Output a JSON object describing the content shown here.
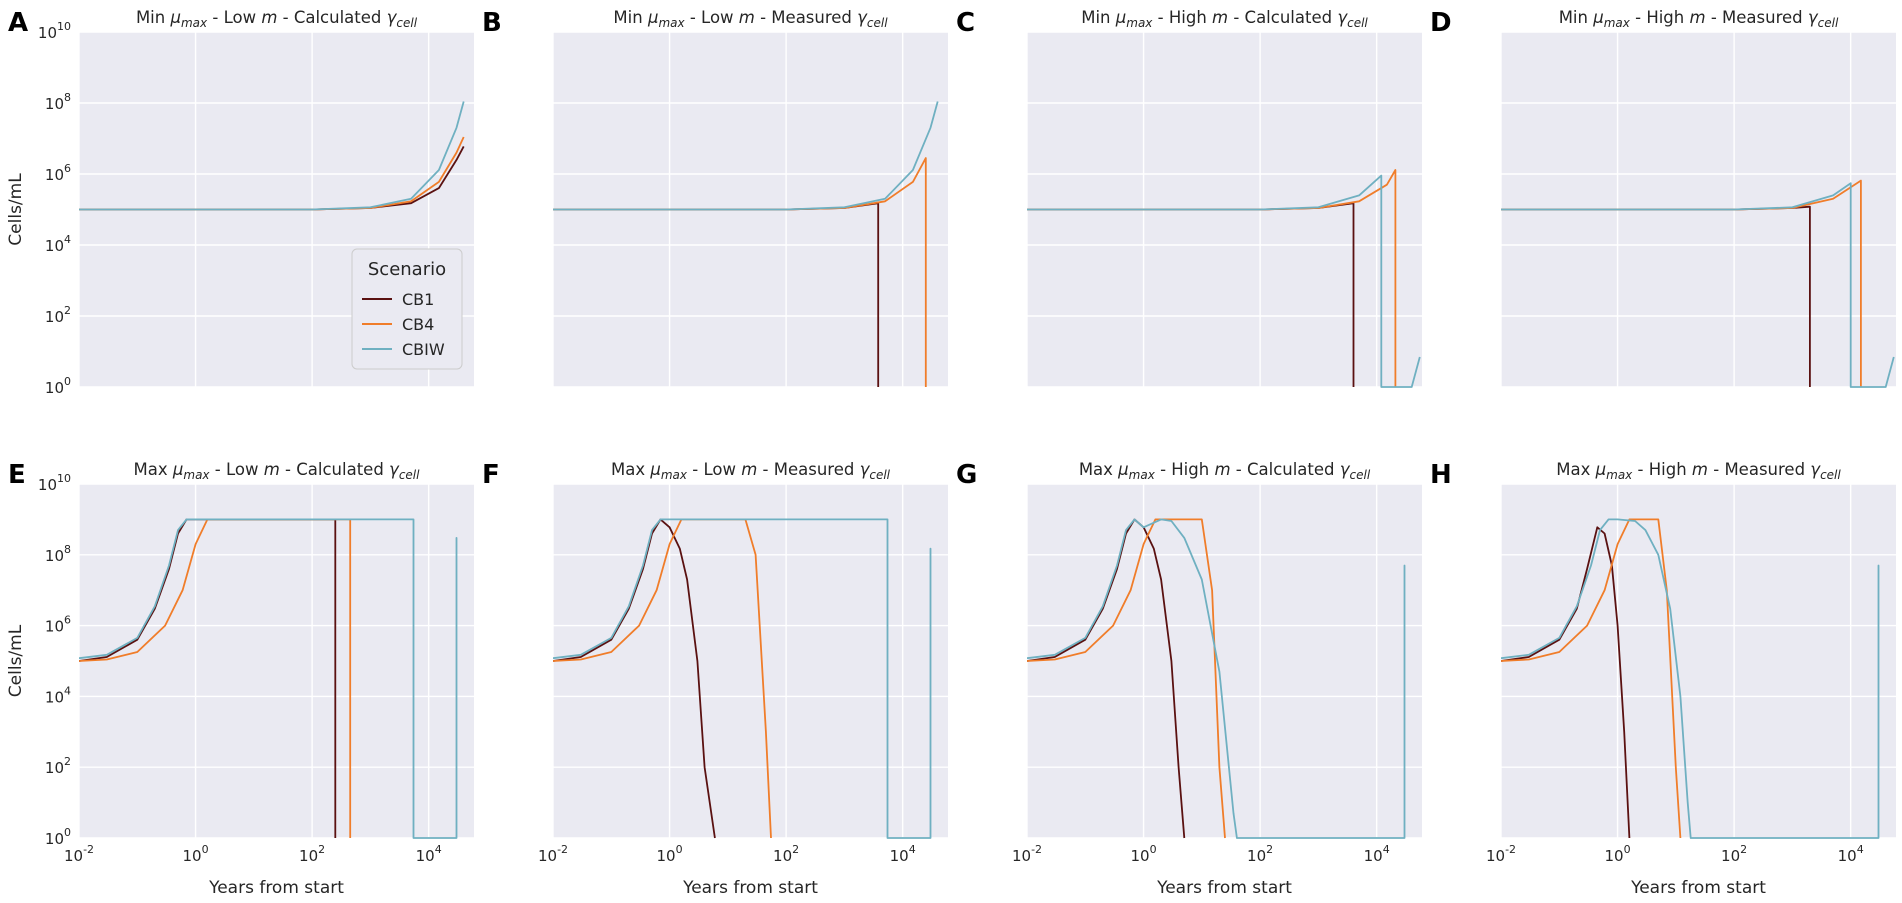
{
  "colors": {
    "CB1": "#5a1111",
    "CB4": "#f07d2a",
    "CBIW": "#6fb0c1",
    "axes_bg": "#eaeaf2",
    "grid": "#ffffff"
  },
  "chart_data": [
    {
      "panel": "A",
      "type": "line",
      "title": {
        "prefix": "Min ",
        "mu_sub": "max",
        "middle": " - Low ",
        "m": "m",
        "tail": " - Calculated ",
        "gamma_sub": "cell"
      },
      "xlabel": "",
      "ylabel": "Cells/mL",
      "xscale": "log",
      "yscale": "log",
      "xlim": [
        0.01,
        60000
      ],
      "ylim": [
        1,
        10000000000.0
      ],
      "legend": {
        "title": "Scenario",
        "position": "lower-right",
        "entries": [
          "CB1",
          "CB4",
          "CBIW"
        ]
      },
      "series": [
        {
          "name": "CB1",
          "x": [
            0.01,
            100,
            1000,
            5000,
            15000,
            30000,
            40000
          ],
          "y": [
            100000,
            100000,
            110000,
            150000,
            400000,
            2500000,
            6000000
          ]
        },
        {
          "name": "CB4",
          "x": [
            0.01,
            100,
            1000,
            5000,
            15000,
            30000,
            40000
          ],
          "y": [
            100000,
            100000,
            110000,
            170000,
            600000,
            4000000,
            11000000
          ]
        },
        {
          "name": "CBIW",
          "x": [
            0.01,
            100,
            1000,
            5000,
            15000,
            30000,
            40000
          ],
          "y": [
            100000,
            100000,
            115000,
            200000,
            1300000,
            20000000,
            110000000
          ]
        }
      ]
    },
    {
      "panel": "B",
      "type": "line",
      "title": {
        "prefix": "Min ",
        "mu_sub": "max",
        "middle": " - Low ",
        "m": "m",
        "tail": " - Measured ",
        "gamma_sub": "cell"
      },
      "xlabel": "",
      "ylabel": "",
      "xscale": "log",
      "yscale": "log",
      "xlim": [
        0.01,
        60000
      ],
      "ylim": [
        1,
        10000000000.0
      ],
      "series": [
        {
          "name": "CB1",
          "x": [
            0.01,
            100,
            1000,
            3800,
            3800.1
          ],
          "y": [
            100000,
            100000,
            110000,
            150000,
            1
          ]
        },
        {
          "name": "CB4",
          "x": [
            0.01,
            100,
            1000,
            5000,
            15000,
            25000,
            25000.1
          ],
          "y": [
            100000,
            100000,
            110000,
            170000,
            600000,
            2800000,
            1
          ]
        },
        {
          "name": "CBIW",
          "x": [
            0.01,
            100,
            1000,
            5000,
            15000,
            30000,
            40000
          ],
          "y": [
            100000,
            100000,
            115000,
            200000,
            1300000,
            20000000,
            110000000
          ]
        }
      ]
    },
    {
      "panel": "C",
      "type": "line",
      "title": {
        "prefix": "Min ",
        "mu_sub": "max",
        "middle": " - High ",
        "m": "m",
        "tail": " - Calculated ",
        "gamma_sub": "cell"
      },
      "xlabel": "",
      "ylabel": "",
      "xscale": "log",
      "yscale": "log",
      "xlim": [
        0.01,
        60000
      ],
      "ylim": [
        1,
        10000000000.0
      ],
      "series": [
        {
          "name": "CB1",
          "x": [
            0.01,
            100,
            1000,
            4000,
            4000.1
          ],
          "y": [
            100000,
            100000,
            110000,
            150000,
            1
          ]
        },
        {
          "name": "CB4",
          "x": [
            0.01,
            100,
            1000,
            5000,
            15000,
            21000,
            21000.1
          ],
          "y": [
            100000,
            100000,
            110000,
            170000,
            500000,
            1300000,
            1
          ]
        },
        {
          "name": "CBIW",
          "x": [
            0.01,
            100,
            1000,
            5000,
            12000,
            12000.1,
            40000,
            55000
          ],
          "y": [
            100000,
            100000,
            115000,
            250000,
            900000,
            1,
            1,
            7
          ]
        }
      ]
    },
    {
      "panel": "D",
      "type": "line",
      "title": {
        "prefix": "Min ",
        "mu_sub": "max",
        "middle": " - High ",
        "m": "m",
        "tail": " - Measured ",
        "gamma_sub": "cell"
      },
      "xlabel": "",
      "ylabel": "",
      "xscale": "log",
      "yscale": "log",
      "xlim": [
        0.01,
        60000
      ],
      "ylim": [
        1,
        10000000000.0
      ],
      "series": [
        {
          "name": "CB1",
          "x": [
            0.01,
            100,
            1000,
            2000,
            2000.1
          ],
          "y": [
            100000,
            100000,
            110000,
            120000,
            1
          ]
        },
        {
          "name": "CB4",
          "x": [
            0.01,
            100,
            1000,
            5000,
            15000,
            15000.1
          ],
          "y": [
            100000,
            100000,
            110000,
            200000,
            650000,
            1
          ]
        },
        {
          "name": "CBIW",
          "x": [
            0.01,
            100,
            1000,
            5000,
            10000,
            10000.1,
            40000,
            55000
          ],
          "y": [
            100000,
            100000,
            115000,
            250000,
            550000,
            1,
            1,
            7
          ]
        }
      ]
    },
    {
      "panel": "E",
      "type": "line",
      "title": {
        "prefix": "Max ",
        "mu_sub": "max",
        "middle": " - Low ",
        "m": "m",
        "tail": " - Calculated ",
        "gamma_sub": "cell"
      },
      "xlabel": "Years from start",
      "ylabel": "Cells/mL",
      "xscale": "log",
      "yscale": "log",
      "xlim": [
        0.01,
        60000
      ],
      "ylim": [
        1,
        10000000000.0
      ],
      "x_ticks": [
        "10-2",
        "10^0",
        "10^2",
        "10^4"
      ],
      "series": [
        {
          "name": "CB1",
          "x": [
            0.01,
            0.03,
            0.1,
            0.2,
            0.35,
            0.5,
            0.7,
            250,
            250.1
          ],
          "y": [
            100000,
            130000,
            400000,
            3000000,
            40000000,
            400000000,
            1000000000,
            1000000000,
            1
          ]
        },
        {
          "name": "CB4",
          "x": [
            0.01,
            0.03,
            0.1,
            0.3,
            0.6,
            1,
            1.6,
            450,
            450.1
          ],
          "y": [
            100000,
            110000,
            180000,
            1000000,
            10000000,
            200000000,
            1000000000,
            1000000000,
            1
          ]
        },
        {
          "name": "CBIW",
          "x": [
            0.01,
            0.03,
            0.1,
            0.2,
            0.35,
            0.5,
            0.7,
            5500,
            5500.1,
            30000,
            30000.1,
            30000.2
          ],
          "y": [
            120000,
            150000,
            450000,
            3500000,
            50000000,
            500000000,
            1000000000,
            1000000000,
            1,
            1,
            300000000,
            1
          ]
        }
      ]
    },
    {
      "panel": "F",
      "type": "line",
      "title": {
        "prefix": "Max ",
        "mu_sub": "max",
        "middle": " - Low ",
        "m": "m",
        "tail": " - Measured ",
        "gamma_sub": "cell"
      },
      "xlabel": "Years from start",
      "ylabel": "",
      "xscale": "log",
      "yscale": "log",
      "xlim": [
        0.01,
        60000
      ],
      "ylim": [
        1,
        10000000000.0
      ],
      "x_ticks": [
        "10-2",
        "10^0",
        "10^2",
        "10^4"
      ],
      "series": [
        {
          "name": "CB1",
          "x": [
            0.01,
            0.03,
            0.1,
            0.2,
            0.35,
            0.5,
            0.7,
            1,
            1.5,
            2,
            3,
            4,
            6
          ],
          "y": [
            100000,
            130000,
            400000,
            3000000,
            40000000,
            400000000,
            1000000000,
            600000000,
            150000000,
            20000000,
            100000,
            100,
            1
          ]
        },
        {
          "name": "CB4",
          "x": [
            0.01,
            0.03,
            0.1,
            0.3,
            0.6,
            1,
            1.6,
            20,
            30,
            45,
            55
          ],
          "y": [
            100000,
            110000,
            180000,
            1000000,
            10000000,
            200000000,
            1000000000,
            1000000000,
            100000000,
            1000,
            1
          ]
        },
        {
          "name": "CBIW",
          "x": [
            0.01,
            0.03,
            0.1,
            0.2,
            0.35,
            0.5,
            0.7,
            5500,
            5500.1,
            30000,
            30000.1,
            30000.2
          ],
          "y": [
            120000,
            150000,
            450000,
            3500000,
            50000000,
            500000000,
            1000000000,
            1000000000,
            1,
            1,
            150000000,
            1
          ]
        }
      ]
    },
    {
      "panel": "G",
      "type": "line",
      "title": {
        "prefix": "Max ",
        "mu_sub": "max",
        "middle": " - High ",
        "m": "m",
        "tail": " - Calculated ",
        "gamma_sub": "cell"
      },
      "xlabel": "Years from start",
      "ylabel": "",
      "xscale": "log",
      "yscale": "log",
      "xlim": [
        0.01,
        60000
      ],
      "ylim": [
        1,
        10000000000.0
      ],
      "x_ticks": [
        "10-2",
        "10^0",
        "10^2",
        "10^4"
      ],
      "series": [
        {
          "name": "CB1",
          "x": [
            0.01,
            0.03,
            0.1,
            0.2,
            0.35,
            0.5,
            0.7,
            1,
            1.5,
            2,
            3,
            4,
            5
          ],
          "y": [
            100000,
            130000,
            400000,
            3000000,
            40000000,
            400000000,
            1000000000,
            600000000,
            150000000,
            20000000,
            100000,
            100,
            1
          ]
        },
        {
          "name": "CB4",
          "x": [
            0.01,
            0.03,
            0.1,
            0.3,
            0.6,
            1,
            1.6,
            10,
            15,
            20,
            25
          ],
          "y": [
            100000,
            110000,
            180000,
            1000000,
            10000000,
            200000000,
            1000000000,
            1000000000,
            10000000,
            100,
            1
          ]
        },
        {
          "name": "CBIW",
          "x": [
            0.01,
            0.03,
            0.1,
            0.2,
            0.35,
            0.5,
            0.7,
            1,
            2,
            3,
            5,
            10,
            20,
            35,
            40,
            30000,
            30000.1,
            30000.2
          ],
          "y": [
            120000,
            150000,
            450000,
            3500000,
            50000000,
            500000000,
            1000000000,
            600000000,
            1000000000,
            900000000,
            300000000,
            20000000,
            50000,
            5,
            1,
            1,
            50000000,
            1
          ]
        }
      ]
    },
    {
      "panel": "H",
      "type": "line",
      "title": {
        "prefix": "Max ",
        "mu_sub": "max",
        "middle": " - High ",
        "m": "m",
        "tail": " - Measured ",
        "gamma_sub": "cell"
      },
      "xlabel": "Years from start",
      "ylabel": "",
      "xscale": "log",
      "yscale": "log",
      "xlim": [
        0.01,
        60000
      ],
      "ylim": [
        1,
        10000000000.0
      ],
      "x_ticks": [
        "10-2",
        "10^0",
        "10^2",
        "10^4"
      ],
      "series": [
        {
          "name": "CB1",
          "x": [
            0.01,
            0.03,
            0.1,
            0.2,
            0.3,
            0.45,
            0.6,
            0.8,
            1,
            1.3,
            1.6
          ],
          "y": [
            100000,
            130000,
            400000,
            3000000,
            40000000,
            600000000,
            400000000,
            50000000,
            1000000,
            1000,
            1
          ]
        },
        {
          "name": "CB4",
          "x": [
            0.01,
            0.03,
            0.1,
            0.3,
            0.6,
            1,
            1.6,
            5,
            7,
            10,
            12
          ],
          "y": [
            100000,
            110000,
            180000,
            1000000,
            10000000,
            200000000,
            1000000000,
            1000000000,
            10000000,
            100,
            1
          ]
        },
        {
          "name": "CBIW",
          "x": [
            0.01,
            0.03,
            0.1,
            0.2,
            0.35,
            0.5,
            0.7,
            1,
            2,
            3,
            5,
            8,
            12,
            16,
            18,
            30000,
            30000.1,
            30000.2
          ],
          "y": [
            120000,
            150000,
            450000,
            3500000,
            50000000,
            500000000,
            1000000000,
            1000000000,
            900000000,
            500000000,
            100000000,
            3000000,
            10000,
            10,
            1,
            1,
            50000000,
            1
          ]
        }
      ]
    }
  ]
}
